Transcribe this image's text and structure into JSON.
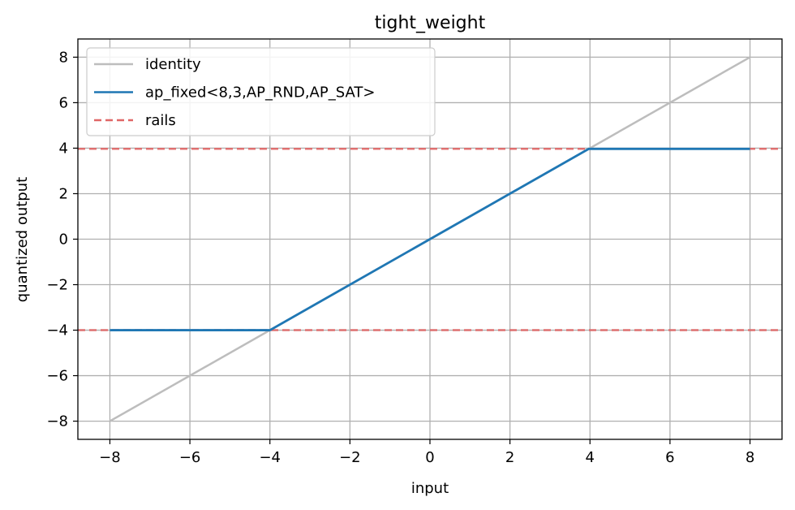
{
  "chart_data": {
    "type": "line",
    "title": "tight_weight",
    "xlabel": "input",
    "ylabel": "quantized output",
    "xlim": [
      -8.8,
      8.8
    ],
    "ylim": [
      -8.8,
      8.8
    ],
    "xticks": [
      -8,
      -6,
      -4,
      -2,
      0,
      2,
      4,
      6,
      8
    ],
    "yticks": [
      -8,
      -6,
      -4,
      -2,
      0,
      2,
      4,
      6,
      8
    ],
    "xtick_labels": [
      "−8",
      "−6",
      "−4",
      "−2",
      "0",
      "2",
      "4",
      "6",
      "8"
    ],
    "ytick_labels": [
      "−8",
      "−6",
      "−4",
      "−2",
      "0",
      "2",
      "4",
      "6",
      "8"
    ],
    "grid": true,
    "legend_position": "upper-left",
    "series": [
      {
        "name": "identity",
        "style": "solid",
        "color": "#bdbdbd",
        "x": [
          -8,
          8
        ],
        "y": [
          -8,
          8
        ]
      },
      {
        "name": "ap_fixed<8,3,AP_RND,AP_SAT>",
        "style": "solid",
        "color": "#1f77b4",
        "x": [
          -8,
          -4,
          0,
          3.97,
          8
        ],
        "y": [
          -4,
          -4,
          0,
          3.97,
          3.97
        ]
      },
      {
        "name": "rails",
        "style": "dashed",
        "color": "#e06666",
        "hlines": [
          3.97,
          -4
        ]
      }
    ]
  }
}
